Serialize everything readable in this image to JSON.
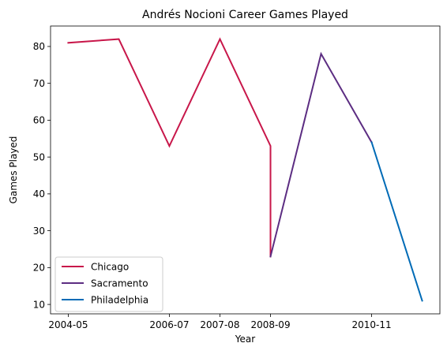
{
  "chart_data": {
    "type": "line",
    "title": "Andrés Nocioni Career Games Played",
    "xlabel": "Year",
    "ylabel": "Games Played",
    "x_ticks": [
      "2004-05",
      "2006-07",
      "2007-08",
      "2008-09",
      "2010-11"
    ],
    "y_ticks": [
      10,
      20,
      30,
      40,
      50,
      60,
      70,
      80
    ],
    "ylim": [
      7.45,
      85.55
    ],
    "grid": false,
    "legend_position": "lower-left",
    "series": [
      {
        "name": "Chicago",
        "color": "#c8174a",
        "points": [
          {
            "x": "2004-05",
            "y": 81
          },
          {
            "x": "2005-06",
            "y": 82
          },
          {
            "x": "2006-07",
            "y": 53
          },
          {
            "x": "2007-08",
            "y": 82
          },
          {
            "x": "2008-09",
            "y": 53
          },
          {
            "x": "2008-09",
            "y": 23
          }
        ]
      },
      {
        "name": "Sacramento",
        "color": "#5c2d82",
        "points": [
          {
            "x": "2008-09",
            "y": 23
          },
          {
            "x": "2009-10",
            "y": 78
          },
          {
            "x": "2010-11",
            "y": 54
          }
        ]
      },
      {
        "name": "Philadelphia",
        "color": "#006bb6",
        "points": [
          {
            "x": "2010-11",
            "y": 54
          },
          {
            "x": "2011-12",
            "y": 11
          }
        ]
      }
    ]
  }
}
